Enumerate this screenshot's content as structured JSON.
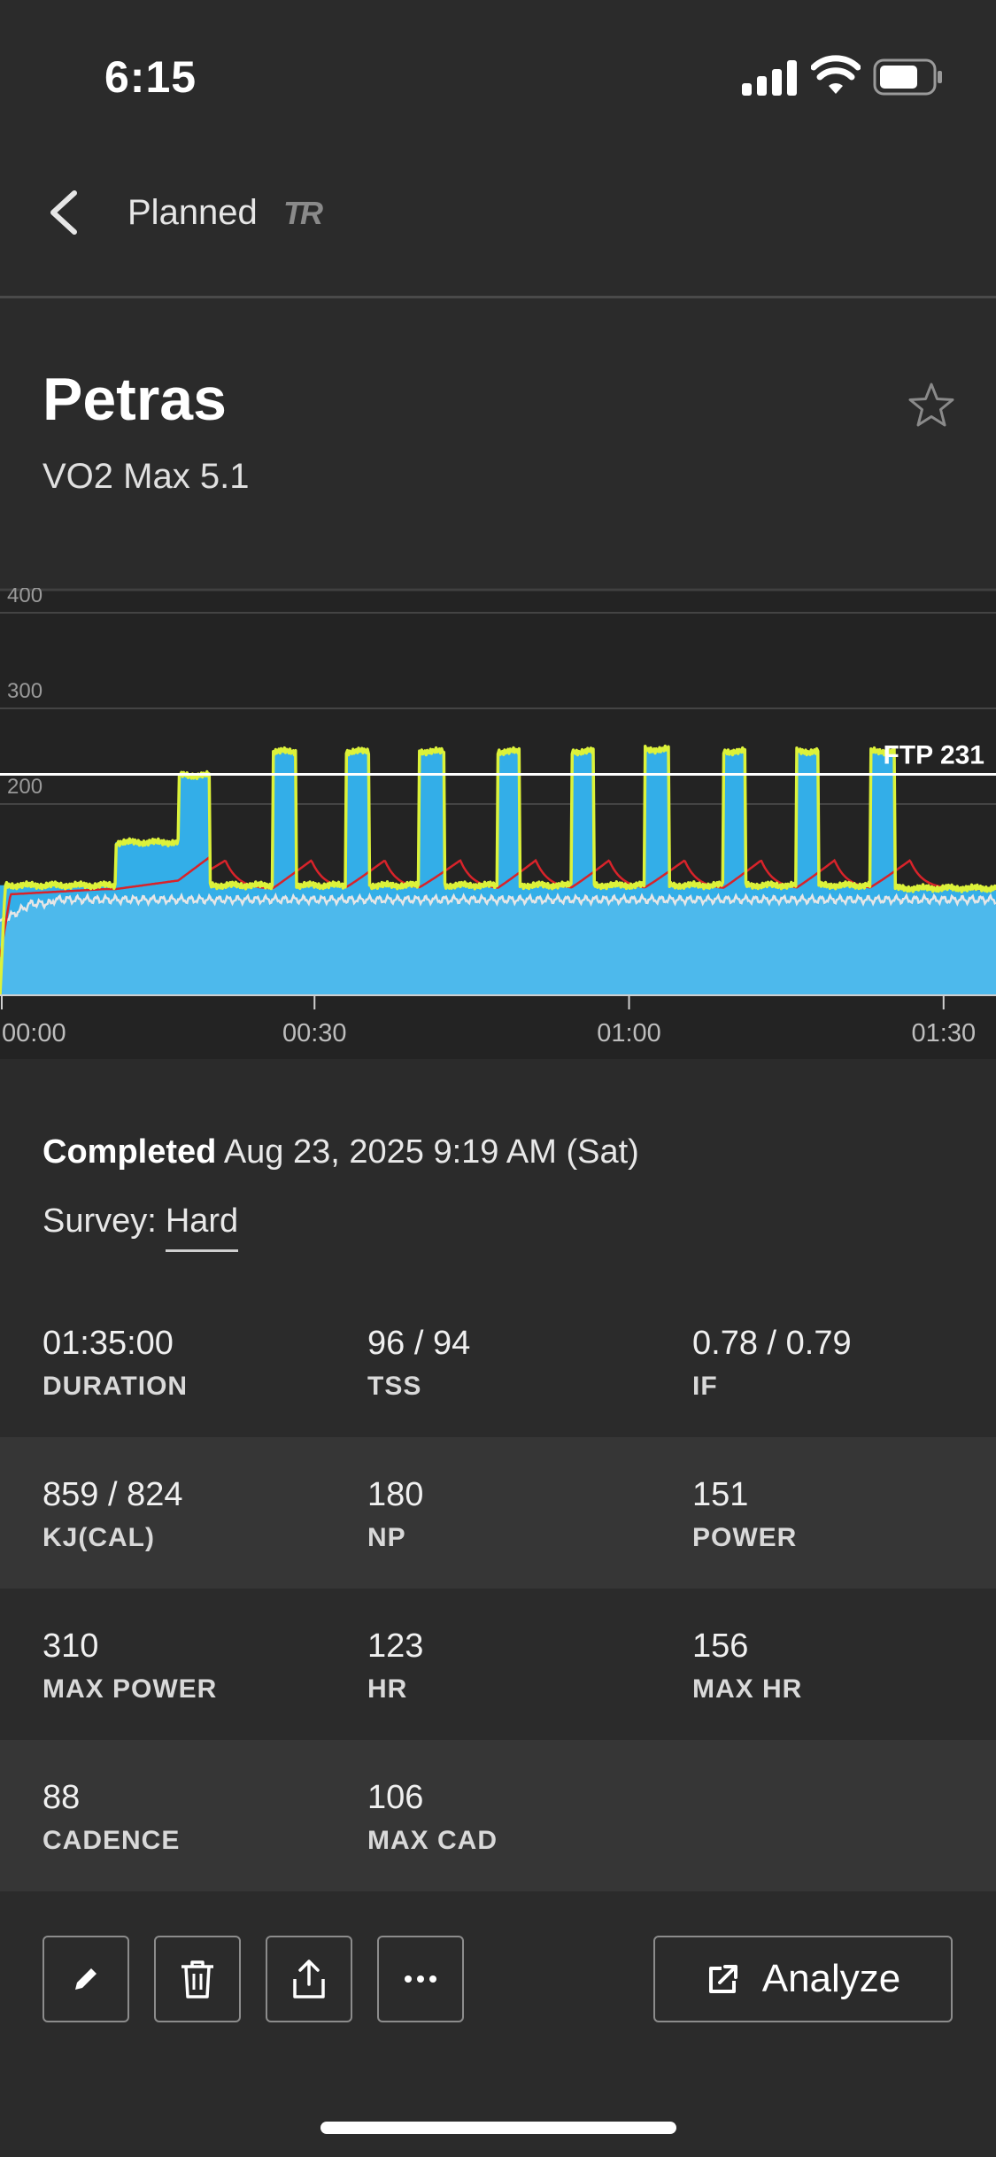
{
  "status_bar": {
    "time": "6:15"
  },
  "nav": {
    "title": "Planned",
    "logo": "TR"
  },
  "workout": {
    "title": "Petras",
    "subtitle": "VO2 Max 5.1"
  },
  "chart_data": {
    "type": "area",
    "y_ticks": [
      "400",
      "300",
      "200"
    ],
    "x_ticks": [
      "00:00",
      "00:30",
      "01:00",
      "01:30"
    ],
    "ftp_label": "FTP 231",
    "ftp": 231,
    "ylim": [
      0,
      420
    ],
    "xlim_minutes": [
      0,
      95
    ],
    "intervals": [
      {
        "start": 0,
        "end": 11,
        "power": 115
      },
      {
        "start": 11,
        "end": 17,
        "power": 160
      },
      {
        "start": 17,
        "end": 20,
        "power": 230
      },
      {
        "start": 20,
        "end": 26,
        "power": 115
      },
      {
        "start": 26,
        "end": 28.2,
        "power": 255
      },
      {
        "start": 28.2,
        "end": 33,
        "power": 115
      },
      {
        "start": 33,
        "end": 35.2,
        "power": 255
      },
      {
        "start": 35.2,
        "end": 40,
        "power": 115
      },
      {
        "start": 40,
        "end": 42.4,
        "power": 255
      },
      {
        "start": 42.4,
        "end": 47.5,
        "power": 115
      },
      {
        "start": 47.5,
        "end": 49.6,
        "power": 255
      },
      {
        "start": 49.6,
        "end": 54.5,
        "power": 115
      },
      {
        "start": 54.5,
        "end": 56.6,
        "power": 255
      },
      {
        "start": 56.6,
        "end": 61.5,
        "power": 115
      },
      {
        "start": 61.5,
        "end": 63.8,
        "power": 257
      },
      {
        "start": 63.8,
        "end": 69,
        "power": 115
      },
      {
        "start": 69,
        "end": 71.1,
        "power": 255
      },
      {
        "start": 71.1,
        "end": 76,
        "power": 115
      },
      {
        "start": 76,
        "end": 78.1,
        "power": 255
      },
      {
        "start": 78.1,
        "end": 83,
        "power": 115
      },
      {
        "start": 83,
        "end": 85.3,
        "power": 255
      },
      {
        "start": 85.3,
        "end": 95,
        "power": 112
      }
    ],
    "colors": {
      "target": "#33aee8",
      "power": "#dcf23a",
      "hr": "#d8232a",
      "cadence": "#e6e6e6",
      "fill": "#4db9ec"
    }
  },
  "completed": {
    "label": "Completed",
    "datetime": "Aug 23, 2025 9:19 AM (Sat)"
  },
  "survey": {
    "label": "Survey:",
    "value": "Hard"
  },
  "stats": [
    [
      {
        "value": "01:35:00",
        "label": "DURATION"
      },
      {
        "value": "96 / 94",
        "label": "TSS"
      },
      {
        "value": "0.78 / 0.79",
        "label": "IF"
      }
    ],
    [
      {
        "value": "859 / 824",
        "label": "KJ(CAL)"
      },
      {
        "value": "180",
        "label": "NP"
      },
      {
        "value": "151",
        "label": "POWER"
      }
    ],
    [
      {
        "value": "310",
        "label": "MAX POWER"
      },
      {
        "value": "123",
        "label": "HR"
      },
      {
        "value": "156",
        "label": "MAX HR"
      }
    ],
    [
      {
        "value": "88",
        "label": "CADENCE"
      },
      {
        "value": "106",
        "label": "MAX CAD"
      }
    ]
  ],
  "actions": {
    "analyze_label": "Analyze"
  },
  "icons": [
    "back-chevron-icon",
    "star-icon",
    "pencil-icon",
    "trash-icon",
    "share-icon",
    "more-icon",
    "external-link-icon"
  ]
}
